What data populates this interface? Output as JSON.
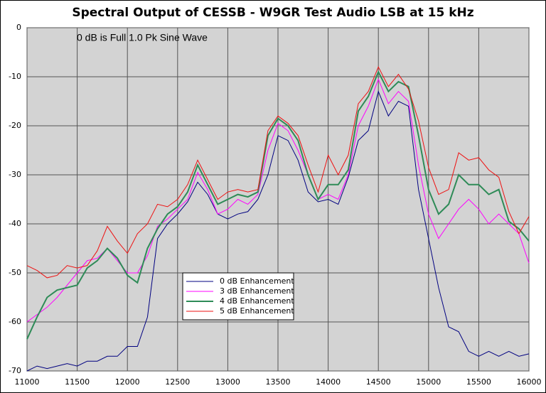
{
  "chart_data": {
    "type": "line",
    "title": "Spectral Output of CESSB - W9GR Test Audio LSB at 15 kHz",
    "annotation": "0 dB is Full 1.0 Pk Sine Wave",
    "x": [
      11000,
      11100,
      11200,
      11300,
      11400,
      11500,
      11600,
      11700,
      11800,
      11900,
      12000,
      12100,
      12200,
      12300,
      12400,
      12500,
      12600,
      12700,
      12800,
      12900,
      13000,
      13100,
      13200,
      13300,
      13400,
      13500,
      13600,
      13700,
      13800,
      13900,
      14000,
      14100,
      14200,
      14300,
      14400,
      14500,
      14600,
      14700,
      14800,
      14900,
      15000,
      15100,
      15200,
      15300,
      15400,
      15500,
      15600,
      15700,
      15800,
      15900,
      16000
    ],
    "series": [
      {
        "name": "0 dB Enhancement",
        "color": "#000080",
        "values": [
          -70,
          -69,
          -69.5,
          -69,
          -68.5,
          -69,
          -68,
          -68,
          -67,
          -67,
          -65,
          -65,
          -59,
          -43,
          -40,
          -38,
          -35.5,
          -31.5,
          -34,
          -38,
          -39,
          -38,
          -37.5,
          -35,
          -30,
          -22,
          -23,
          -27,
          -33.5,
          -35.5,
          -35,
          -36,
          -30.5,
          -23,
          -21,
          -13,
          -18,
          -15,
          -16,
          -33,
          -43,
          -53,
          -61,
          -62,
          -66,
          -67,
          -66,
          -67,
          -66,
          -67,
          -66.5
        ]
      },
      {
        "name": "3 dB Enhancement",
        "color": "#ff00ff",
        "values": [
          -60,
          -58.5,
          -57,
          -55,
          -52.5,
          -50,
          -47.5,
          -47,
          -45,
          -47.5,
          -50,
          -50,
          -46.5,
          -40.5,
          -39,
          -37,
          -35,
          -29.5,
          -33,
          -38,
          -37,
          -35,
          -36,
          -34,
          -25,
          -19.5,
          -21,
          -25,
          -30,
          -35,
          -34,
          -35,
          -30,
          -20,
          -16,
          -10.5,
          -15.5,
          -13,
          -15,
          -28,
          -38,
          -43,
          -40,
          -37,
          -35,
          -37,
          -40,
          -38,
          -40,
          -42,
          -48
        ]
      },
      {
        "name": "4 dB Enhancement",
        "color": "#2e8b57",
        "values": [
          -63.5,
          -59,
          -55,
          -53.5,
          -53,
          -52.5,
          -49,
          -47.5,
          -45,
          -47,
          -50.5,
          -52,
          -45,
          -41,
          -38,
          -36.5,
          -33.5,
          -28,
          -32,
          -36,
          -35,
          -34,
          -34.5,
          -33.5,
          -22,
          -18.5,
          -20,
          -23,
          -30,
          -35,
          -32,
          -32,
          -29,
          -17,
          -14,
          -9,
          -13,
          -11,
          -12,
          -22,
          -33,
          -38,
          -36,
          -30,
          -32,
          -32,
          -34,
          -33,
          -39.5,
          -41,
          -43.5
        ]
      },
      {
        "name": "5 dB Enhancement",
        "color": "#ee1111",
        "values": [
          -48.5,
          -49.5,
          -51,
          -50.5,
          -48.5,
          -49,
          -48.5,
          -45.5,
          -40.5,
          -43.5,
          -46,
          -42,
          -40,
          -36,
          -36.5,
          -35,
          -32,
          -27,
          -31,
          -35,
          -33.5,
          -33,
          -33.5,
          -33,
          -21,
          -18,
          -19.5,
          -22,
          -28,
          -33.5,
          -26,
          -30,
          -26,
          -15.5,
          -13,
          -8,
          -12,
          -9.5,
          -12.5,
          -19,
          -28.5,
          -34,
          -33,
          -25.5,
          -27,
          -26.5,
          -29,
          -30.5,
          -37.5,
          -42,
          -38.5
        ]
      }
    ],
    "xlim": [
      11000,
      16000
    ],
    "xticks": [
      11000,
      11500,
      12000,
      12500,
      13000,
      13500,
      14000,
      14500,
      15000,
      15500,
      16000
    ],
    "ylim": [
      -70,
      0
    ],
    "yticks": [
      0,
      -10,
      -20,
      -30,
      -40,
      -50,
      -60,
      -70
    ],
    "grid": true
  }
}
